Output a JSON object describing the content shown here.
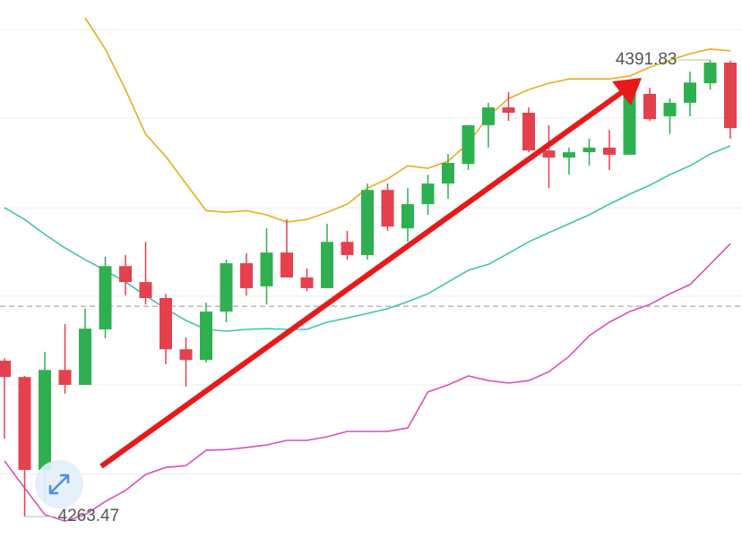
{
  "chart_data": {
    "type": "candlestick",
    "ylim": [
      4255.2,
      4408.7
    ],
    "gridlines": [
      4400.4,
      4375.5,
      4350.3,
      4325.4,
      4300.5,
      4275.5
    ],
    "price_line": 4322.6,
    "up_color": "#2fb050",
    "down_color": "#e5404e",
    "open": [
      4307.3,
      4302.7,
      4276.6,
      4304.7,
      4300.5,
      4316.1,
      4333.9,
      4329.4,
      4324.9,
      4310.5,
      4307.5,
      4321.1,
      4334.7,
      4328.2,
      4337.7,
      4330.7,
      4327.7,
      4340.7,
      4337.0,
      4355.3,
      4344.5,
      4351.3,
      4357.1,
      4362.6,
      4373.5,
      4378.5,
      4377.0,
      4366.4,
      4364.4,
      4365.9,
      4367.2,
      4365.2,
      4382.3,
      4376.0,
      4379.8,
      4385.3,
      4391.1
    ],
    "high": [
      4308.0,
      4303.0,
      4309.8,
      4317.6,
      4321.9,
      4336.5,
      4337.0,
      4340.7,
      4326.1,
      4313.8,
      4323.6,
      4335.7,
      4337.5,
      4344.5,
      4347.0,
      4333.2,
      4345.8,
      4343.8,
      4357.1,
      4357.1,
      4355.8,
      4359.6,
      4365.4,
      4373.5,
      4379.8,
      4382.8,
      4378.5,
      4373.5,
      4367.2,
      4369.7,
      4372.2,
      4384.8,
      4384.0,
      4381.0,
      4388.6,
      4391.83,
      4391.6
    ],
    "low": [
      4285.4,
      4263.47,
      4267.7,
      4298.0,
      4300.5,
      4313.6,
      4325.6,
      4323.1,
      4306.3,
      4300.0,
      4306.8,
      4318.1,
      4325.6,
      4323.1,
      4330.7,
      4326.9,
      4327.7,
      4335.7,
      4335.7,
      4343.8,
      4340.7,
      4348.3,
      4352.8,
      4360.9,
      4367.2,
      4374.7,
      4365.9,
      4355.8,
      4359.6,
      4362.1,
      4360.9,
      4365.2,
      4374.7,
      4371.0,
      4376.0,
      4383.5,
      4369.7
    ],
    "close": [
      4302.7,
      4276.6,
      4304.7,
      4300.5,
      4316.3,
      4333.9,
      4329.4,
      4324.9,
      4310.5,
      4307.5,
      4321.1,
      4334.7,
      4327.7,
      4337.7,
      4330.7,
      4327.7,
      4340.7,
      4337.0,
      4355.3,
      4345.0,
      4351.3,
      4357.1,
      4362.9,
      4373.5,
      4378.5,
      4377.0,
      4366.4,
      4364.4,
      4365.9,
      4367.2,
      4365.2,
      4382.3,
      4375.2,
      4379.8,
      4385.5,
      4391.1,
      4372.7
    ],
    "bands": [
      {
        "color": "#e6ad1e",
        "values": [
          null,
          null,
          null,
          null,
          4403.7,
          4394.9,
          4383.5,
          4371.0,
          4364.7,
          4357.1,
          4349.5,
          4349.0,
          4349.5,
          4348.3,
          4346.3,
          4347.0,
          4349.0,
          4351.3,
          4355.8,
          4358.4,
          4362.1,
          4361.4,
          4363.4,
          4368.4,
          4376.0,
          4381.0,
          4383.5,
          4385.3,
          4386.5,
          4386.5,
          4386.5,
          4387.3,
          4389.8,
          4391.8,
          4393.6,
          4394.9,
          4394.4
        ]
      },
      {
        "color": "#3cc6ae",
        "values": [
          4350.3,
          4347.0,
          4342.8,
          4339.0,
          4335.7,
          4332.7,
          4329.4,
          4325.6,
          4321.9,
          4318.6,
          4316.1,
          4315.6,
          4316.1,
          4316.3,
          4316.1,
          4316.1,
          4318.1,
          4319.3,
          4320.6,
          4321.9,
          4323.9,
          4326.1,
          4329.4,
          4332.7,
          4334.4,
          4337.5,
          4340.7,
          4343.3,
          4345.8,
          4348.3,
          4351.3,
          4354.1,
          4356.6,
          4359.6,
          4362.1,
          4365.4,
          4367.7
        ]
      },
      {
        "color": "#d84fbd",
        "values": [
          4279.1,
          4271.5,
          4264.0,
          4262.2,
          4264.0,
          4267.7,
          4270.8,
          4275.3,
          4277.3,
          4277.8,
          4282.1,
          4282.3,
          4282.9,
          4283.6,
          4284.9,
          4284.9,
          4285.9,
          4287.4,
          4287.4,
          4287.4,
          4288.4,
          4298.5,
          4300.5,
          4303.0,
          4301.7,
          4301.0,
          4301.7,
          4304.2,
          4308.5,
          4314.3,
          4318.1,
          4321.1,
          4323.1,
          4326.1,
          4328.7,
          4334.4,
          4340.2
        ]
      }
    ],
    "max_label": 4391.83,
    "min_label": 4263.47
  }
}
